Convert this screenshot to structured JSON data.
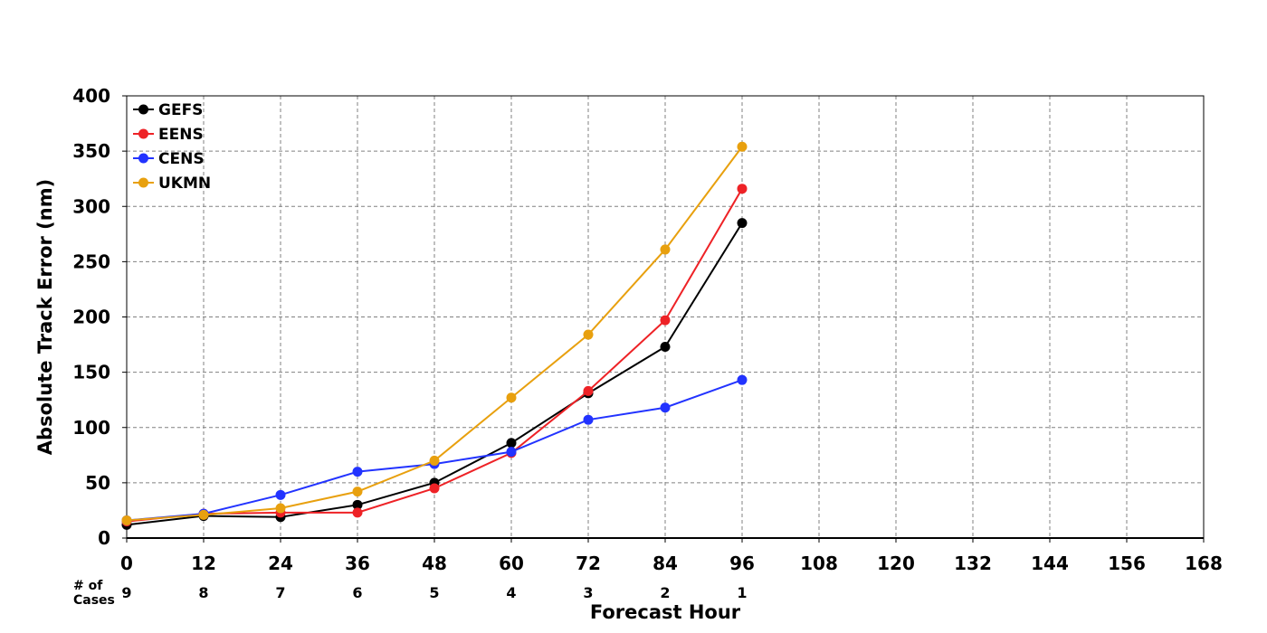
{
  "chart_data": {
    "type": "line",
    "xlabel": "Forecast Hour",
    "ylabel": "Absolute Track Error (nm)",
    "xlim": [
      0,
      168
    ],
    "ylim": [
      0,
      400
    ],
    "xticks": [
      0,
      12,
      24,
      36,
      48,
      60,
      72,
      84,
      96,
      108,
      120,
      132,
      144,
      156,
      168
    ],
    "yticks": [
      0,
      50,
      100,
      150,
      200,
      250,
      300,
      350,
      400
    ],
    "grid": true,
    "legend_position": "top-left",
    "x": [
      0,
      12,
      24,
      36,
      48,
      60,
      72,
      84,
      96
    ],
    "series": [
      {
        "name": "GEFS",
        "color": "#000000",
        "values": [
          12,
          20,
          19,
          30,
          50,
          86,
          131,
          173,
          285
        ]
      },
      {
        "name": "EENS",
        "color": "#ee2226",
        "values": [
          15,
          22,
          23,
          23,
          45,
          77,
          133,
          197,
          316
        ]
      },
      {
        "name": "CENS",
        "color": "#2233ff",
        "values": [
          16,
          22,
          39,
          60,
          67,
          78,
          107,
          118,
          143
        ]
      },
      {
        "name": "UKMN",
        "color": "#e8a00e",
        "values": [
          16,
          21,
          27,
          42,
          70,
          127,
          184,
          261,
          354
        ]
      }
    ],
    "cases": {
      "label_line1": "# of",
      "label_line2": "Cases",
      "x": [
        0,
        12,
        24,
        36,
        48,
        60,
        72,
        84,
        96
      ],
      "counts": [
        "9",
        "8",
        "7",
        "6",
        "5",
        "4",
        "3",
        "2",
        "1"
      ]
    }
  }
}
